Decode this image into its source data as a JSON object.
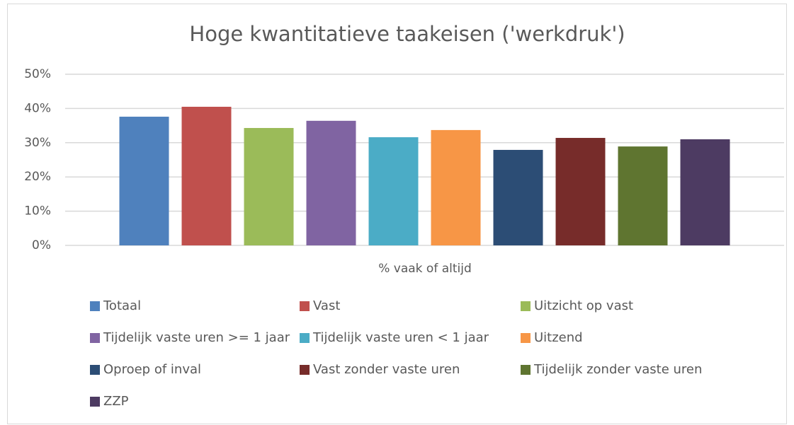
{
  "chart_data": {
    "type": "bar",
    "title": "Hoge kwantitatieve taakeisen ('werkdruk')",
    "x_label": "% vaak of altijd",
    "categories": [
      "% vaak of altijd"
    ],
    "series": [
      {
        "name": "Totaal",
        "color": "#4f81bd",
        "values": [
          37.6
        ]
      },
      {
        "name": "Vast",
        "color": "#c0504d",
        "values": [
          40.5
        ]
      },
      {
        "name": "Uitzicht op vast",
        "color": "#9bbb59",
        "values": [
          34.3
        ]
      },
      {
        "name": "Tijdelijk vaste uren >= 1 jaar",
        "color": "#8064a2",
        "values": [
          36.4
        ]
      },
      {
        "name": "Tijdelijk vaste uren < 1 jaar",
        "color": "#4bacc6",
        "values": [
          31.6
        ]
      },
      {
        "name": "Uitzend",
        "color": "#f79646",
        "values": [
          33.7
        ]
      },
      {
        "name": "Oproep of inval",
        "color": "#2c4d75",
        "values": [
          27.9
        ]
      },
      {
        "name": "Vast zonder vaste uren",
        "color": "#772c2a",
        "values": [
          31.4
        ]
      },
      {
        "name": "Tijdelijk zonder vaste uren",
        "color": "#5f7530",
        "values": [
          28.9
        ]
      },
      {
        "name": "ZZP",
        "color": "#4d3b62",
        "values": [
          31.0
        ]
      }
    ],
    "ylim": [
      0,
      50
    ],
    "yticks": [
      {
        "value": 0,
        "label": "0%"
      },
      {
        "value": 10,
        "label": "10%"
      },
      {
        "value": 20,
        "label": "20%"
      },
      {
        "value": 30,
        "label": "30%"
      },
      {
        "value": 40,
        "label": "40%"
      },
      {
        "value": 50,
        "label": "50%"
      }
    ],
    "grid": true,
    "legend": "bottom"
  }
}
